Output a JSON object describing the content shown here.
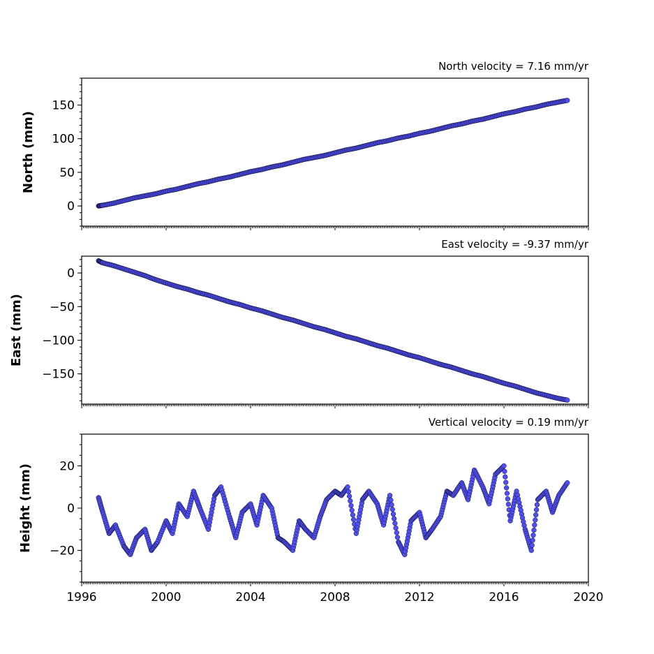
{
  "chart_data": [
    {
      "type": "scatter",
      "title": "North velocity = 7.16 mm/yr",
      "ylabel": "North (mm)",
      "ylim": [
        -30,
        190
      ],
      "xlim": [
        1996,
        2020
      ],
      "yticks": [
        "0",
        "50",
        "100",
        "150"
      ],
      "grid": false,
      "marker_color": "#4f4ff5",
      "series": [
        {
          "x": [
            1996.8,
            1997.0,
            1997.5,
            1998.0,
            1998.5,
            1999.0,
            1999.5,
            2000.0,
            2000.5,
            2001.0,
            2001.5,
            2002.0,
            2002.5,
            2003.0,
            2003.5,
            2004.0,
            2004.5,
            2005.0,
            2005.5,
            2006.0,
            2006.5,
            2007.0,
            2007.5,
            2008.0,
            2008.5,
            2009.0,
            2009.5,
            2010.0,
            2010.5,
            2011.0,
            2011.5,
            2012.0,
            2012.5,
            2013.0,
            2013.5,
            2014.0,
            2014.5,
            2015.0,
            2015.5,
            2016.0,
            2016.5,
            2017.0,
            2017.5,
            2018.0,
            2018.5,
            2019.0
          ],
          "y": [
            0,
            1,
            4,
            8,
            12,
            15,
            18,
            22,
            25,
            29,
            33,
            36,
            40,
            43,
            47,
            51,
            54,
            58,
            61,
            65,
            69,
            72,
            75,
            79,
            83,
            86,
            90,
            94,
            97,
            101,
            104,
            108,
            111,
            115,
            119,
            122,
            126,
            129,
            133,
            137,
            140,
            144,
            147,
            151,
            154,
            157
          ]
        }
      ]
    },
    {
      "type": "scatter",
      "title": "East velocity = -9.37 mm/yr",
      "ylabel": "East (mm)",
      "ylim": [
        -195,
        25
      ],
      "xlim": [
        1996,
        2020
      ],
      "yticks": [
        "0",
        "−50",
        "−100",
        "−150"
      ],
      "grid": false,
      "marker_color": "#4f4ff5",
      "series": [
        {
          "x": [
            1996.8,
            1997.0,
            1997.5,
            1998.0,
            1998.5,
            1999.0,
            1999.5,
            2000.0,
            2000.5,
            2001.0,
            2001.5,
            2002.0,
            2002.5,
            2003.0,
            2003.5,
            2004.0,
            2004.5,
            2005.0,
            2005.5,
            2006.0,
            2006.5,
            2007.0,
            2007.5,
            2008.0,
            2008.5,
            2009.0,
            2009.5,
            2010.0,
            2010.5,
            2011.0,
            2011.5,
            2012.0,
            2012.5,
            2013.0,
            2013.5,
            2014.0,
            2014.5,
            2015.0,
            2015.5,
            2016.0,
            2016.5,
            2017.0,
            2017.5,
            2018.0,
            2018.5,
            2019.0
          ],
          "y": [
            18,
            15,
            11,
            6,
            1,
            -4,
            -10,
            -15,
            -20,
            -24,
            -29,
            -33,
            -38,
            -43,
            -47,
            -52,
            -56,
            -61,
            -66,
            -70,
            -75,
            -80,
            -84,
            -89,
            -94,
            -98,
            -103,
            -108,
            -112,
            -117,
            -122,
            -126,
            -131,
            -136,
            -140,
            -145,
            -150,
            -154,
            -159,
            -164,
            -168,
            -173,
            -178,
            -182,
            -186,
            -189
          ]
        }
      ]
    },
    {
      "type": "scatter",
      "title": "Vertical velocity = 0.19 mm/yr",
      "ylabel": "Height (mm)",
      "ylim": [
        -35,
        35
      ],
      "xlim": [
        1996,
        2020
      ],
      "xticks": [
        "1996",
        "2000",
        "2004",
        "2008",
        "2012",
        "2016",
        "2020"
      ],
      "yticks": [
        "20",
        "0",
        "−20"
      ],
      "grid": false,
      "marker_color": "#4f4ff5",
      "series": [
        {
          "x": [
            1996.8,
            1997.0,
            1997.3,
            1997.6,
            1998.0,
            1998.3,
            1998.6,
            1999.0,
            1999.3,
            1999.6,
            2000.0,
            2000.3,
            2000.6,
            2001.0,
            2001.3,
            2001.6,
            2002.0,
            2002.3,
            2002.6,
            2003.0,
            2003.3,
            2003.6,
            2004.0,
            2004.3,
            2004.6,
            2005.0,
            2005.3,
            2005.6,
            2006.0,
            2006.3,
            2006.6,
            2007.0,
            2007.3,
            2007.6,
            2008.0,
            2008.3,
            2008.6,
            2009.0,
            2009.3,
            2009.6,
            2010.0,
            2010.3,
            2010.6,
            2011.0,
            2011.3,
            2011.6,
            2012.0,
            2012.3,
            2012.6,
            2013.0,
            2013.3,
            2013.6,
            2014.0,
            2014.3,
            2014.6,
            2015.0,
            2015.3,
            2015.6,
            2016.0,
            2016.3,
            2016.6,
            2017.0,
            2017.3,
            2017.6,
            2018.0,
            2018.3,
            2018.6,
            2019.0
          ],
          "y": [
            5,
            -2,
            -12,
            -8,
            -18,
            -22,
            -14,
            -10,
            -20,
            -16,
            -6,
            -12,
            2,
            -4,
            8,
            0,
            -10,
            6,
            10,
            -4,
            -14,
            -2,
            2,
            -8,
            6,
            0,
            -14,
            -16,
            -20,
            -6,
            -10,
            -14,
            -4,
            4,
            8,
            6,
            10,
            -12,
            4,
            8,
            2,
            -8,
            6,
            -16,
            -22,
            -6,
            -2,
            -14,
            -10,
            -4,
            8,
            6,
            12,
            4,
            18,
            10,
            2,
            16,
            20,
            -6,
            8,
            -10,
            -20,
            4,
            8,
            -2,
            6,
            12
          ]
        }
      ]
    }
  ]
}
